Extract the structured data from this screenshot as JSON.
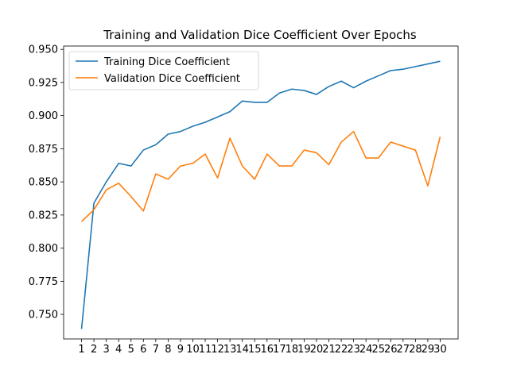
{
  "chart_data": {
    "type": "line",
    "title": "Training and Validation Dice Coefficient Over Epochs",
    "xlabel": "",
    "ylabel": "",
    "x": [
      1,
      2,
      3,
      4,
      5,
      6,
      7,
      8,
      9,
      10,
      11,
      12,
      13,
      14,
      15,
      16,
      17,
      18,
      19,
      20,
      21,
      22,
      23,
      24,
      25,
      26,
      27,
      28,
      29,
      30
    ],
    "x_tick_labels": [
      "1",
      "2",
      "3",
      "4",
      "5",
      "6",
      "7",
      "8",
      "9",
      "10",
      "11",
      "12",
      "13",
      "14",
      "15",
      "16",
      "17",
      "18",
      "19",
      "20",
      "21",
      "22",
      "23",
      "24",
      "25",
      "26",
      "27",
      "28",
      "29",
      "30"
    ],
    "y_ticks": [
      0.75,
      0.775,
      0.8,
      0.825,
      0.85,
      0.875,
      0.9,
      0.925,
      0.95
    ],
    "y_tick_labels": [
      "0.750",
      "0.775",
      "0.800",
      "0.825",
      "0.850",
      "0.875",
      "0.900",
      "0.925",
      "0.950"
    ],
    "xlim": [
      -0.45,
      31.45
    ],
    "ylim": [
      0.7315,
      0.9525
    ],
    "grid": false,
    "legend_position": "upper-left",
    "series": [
      {
        "name": "Training Dice Coefficient",
        "color": "#1f77b4",
        "values": [
          0.739,
          0.834,
          0.85,
          0.864,
          0.862,
          0.874,
          0.878,
          0.886,
          0.888,
          0.892,
          0.895,
          0.899,
          0.903,
          0.911,
          0.91,
          0.91,
          0.917,
          0.92,
          0.919,
          0.916,
          0.922,
          0.926,
          0.921,
          0.926,
          0.93,
          0.934,
          0.935,
          0.937,
          0.939,
          0.941
        ]
      },
      {
        "name": "Validation Dice Coefficient",
        "color": "#ff7f0e",
        "values": [
          0.82,
          0.829,
          0.844,
          0.849,
          0.839,
          0.828,
          0.856,
          0.852,
          0.862,
          0.864,
          0.871,
          0.853,
          0.883,
          0.862,
          0.852,
          0.871,
          0.862,
          0.862,
          0.874,
          0.872,
          0.863,
          0.88,
          0.888,
          0.868,
          0.868,
          0.88,
          0.877,
          0.874,
          0.847,
          0.884
        ]
      }
    ]
  }
}
